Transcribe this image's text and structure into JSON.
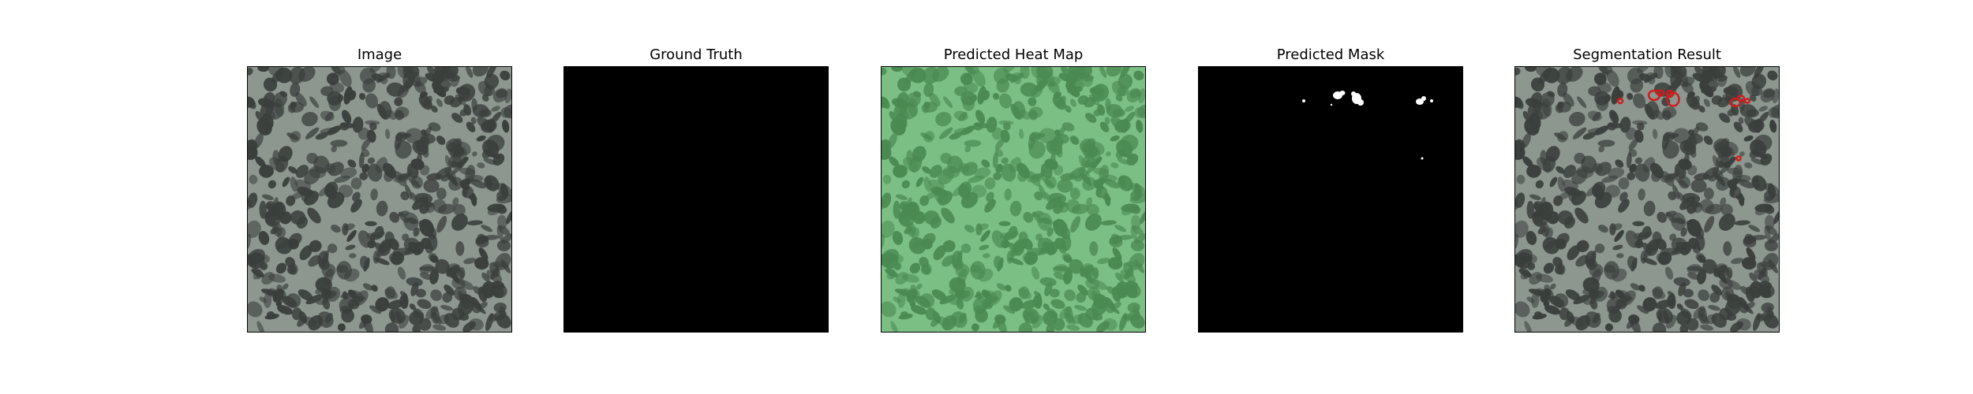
{
  "figure": {
    "panels": [
      {
        "title": "Image",
        "kind": "texture"
      },
      {
        "title": "Ground Truth",
        "kind": "empty-mask"
      },
      {
        "title": "Predicted Heat Map",
        "kind": "heatmap"
      },
      {
        "title": "Predicted Mask",
        "kind": "binary-mask"
      },
      {
        "title": "Segmentation Result",
        "kind": "overlay"
      }
    ]
  },
  "colors": {
    "texture_light": "#8d968f",
    "texture_dark": "#3a3f3c",
    "heatmap_light": "#7cbf85",
    "heatmap_dark": "#4a8a52",
    "mask_background": "#000000",
    "mask_foreground": "#ffffff",
    "contour": "#d01c1c"
  }
}
